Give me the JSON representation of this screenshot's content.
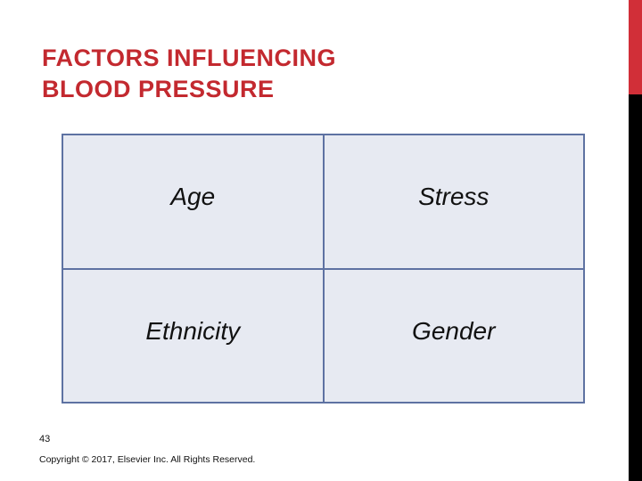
{
  "slide": {
    "title_line1": "FACTORS INFLUENCING",
    "title_line2": "BLOOD PRESSURE",
    "page_number": "43",
    "copyright": "Copyright © 2017, Elsevier Inc. All Rights Reserved."
  },
  "table": {
    "rows": [
      {
        "cells": [
          "Age",
          "Stress"
        ]
      },
      {
        "cells": [
          "Ethnicity",
          "Gender"
        ]
      }
    ]
  },
  "colors": {
    "title_red": "#c3292f",
    "bar_red": "#d12f38",
    "bar_black": "#000000",
    "table_border": "#5e72a2",
    "cell_bg": "#e7eaf2",
    "cell_text": "#111111",
    "background": "#ffffff"
  }
}
